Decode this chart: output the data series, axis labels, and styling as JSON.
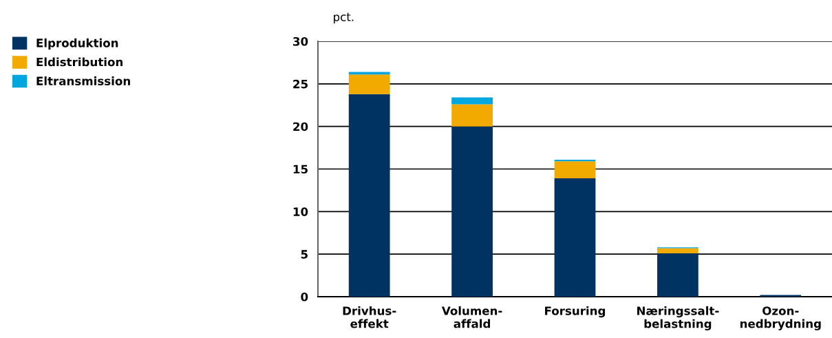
{
  "chart_data": {
    "type": "bar",
    "stacked": true,
    "ylabel": "pct.",
    "categories": [
      "Drivhus-\neffekt",
      "Volumen-\naffald",
      "Forsuring",
      "Næringssalt-\nbelastning",
      "Ozon-\nnedbrydning"
    ],
    "series": [
      {
        "name": "Elproduktion",
        "color": "#003361",
        "values": [
          23.8,
          20.0,
          13.9,
          5.1,
          0.2
        ]
      },
      {
        "name": "Eldistribution",
        "color": "#f2aa00",
        "values": [
          2.3,
          2.6,
          2.0,
          0.6,
          0
        ]
      },
      {
        "name": "Eltransmission",
        "color": "#00a6de",
        "values": [
          0.3,
          0.8,
          0.2,
          0.1,
          0
        ]
      }
    ],
    "ylim": [
      0,
      30
    ],
    "yticks": [
      0,
      5,
      10,
      15,
      20,
      25,
      30
    ],
    "grid": "y",
    "legend": "top left"
  }
}
